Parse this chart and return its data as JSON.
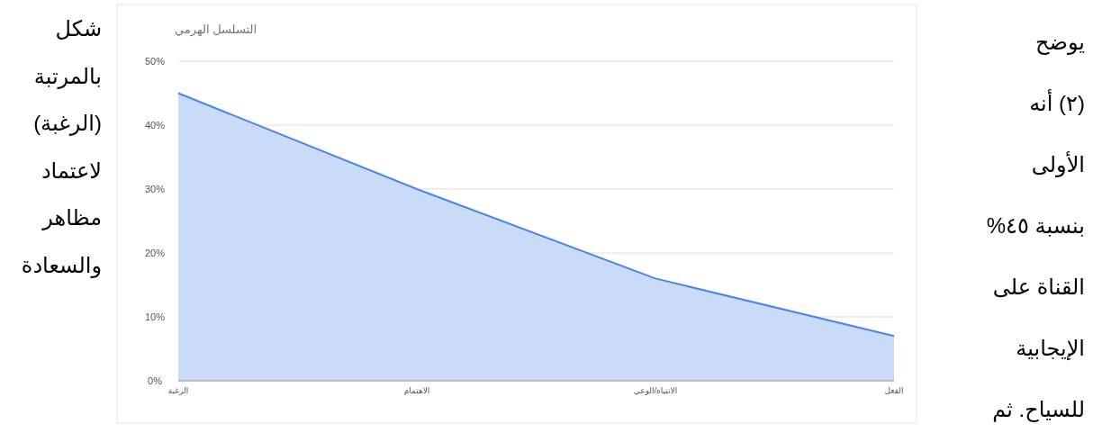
{
  "chart_data": {
    "type": "area",
    "title": "التسلسل الهرمي",
    "categories": [
      "الرغبة",
      "الاهتمام",
      "الانتباه/الوعي",
      "الفعل"
    ],
    "series": [
      {
        "color": "#4a86e8",
        "values": [
          45,
          30,
          16,
          7
        ]
      }
    ],
    "ylim": [
      0,
      50
    ],
    "yticks": [
      {
        "value": 0,
        "label": "0%"
      },
      {
        "value": 10,
        "label": "10%"
      },
      {
        "value": 20,
        "label": "20%"
      },
      {
        "value": 30,
        "label": "30%"
      },
      {
        "value": 40,
        "label": "40%"
      },
      {
        "value": 50,
        "label": "50%"
      }
    ],
    "grid": "y",
    "annotations": [
      "يوضح",
      "(٢) أنه",
      "الأولى",
      "بنسبة ٤٥%",
      "القناة على",
      "الإيجابية",
      "للسياح. ثم",
      "شكل",
      "بالمرتبة",
      "(الرغبة)",
      "لاعتماد",
      "مظاهر",
      "والسعادة"
    ]
  }
}
